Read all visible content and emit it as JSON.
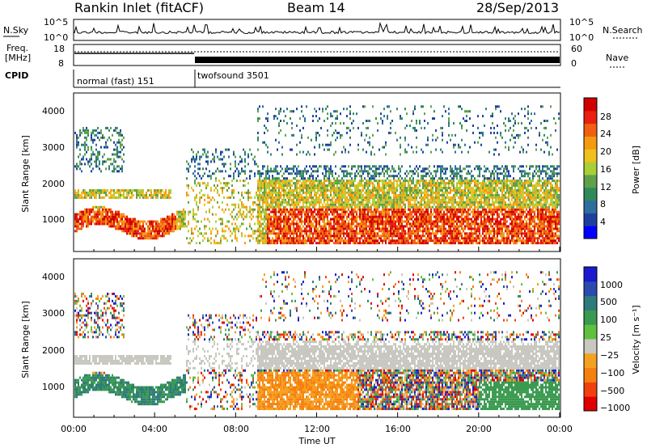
{
  "header": {
    "station": "Rankin Inlet (fitACF)",
    "beam": "Beam 14",
    "date": "28/Sep/2013"
  },
  "panels": {
    "nsky": {
      "label": "N.Sky",
      "ticks": [
        "10^5",
        "10^0"
      ]
    },
    "nsearch": {
      "label": "N.Search",
      "ticks": [
        "10^5",
        "10^0"
      ]
    },
    "freq": {
      "label_line1": "Freq.",
      "label_line2": "[MHz]",
      "ticks": [
        "18",
        "8"
      ]
    },
    "nave": {
      "label": "Nave",
      "ticks": [
        "60",
        "0"
      ]
    },
    "cpid": {
      "label": "CPID",
      "modes": [
        "normal (fast) 151",
        "twofsound 3501"
      ]
    }
  },
  "colors": {
    "power": [
      "#0000ff",
      "#1f3fa0",
      "#2e6e9e",
      "#2f8a5a",
      "#5fa04a",
      "#a8cf3a",
      "#f0c020",
      "#f39a10",
      "#f06010",
      "#e82010",
      "#d00000"
    ],
    "velocity": [
      "#e00000",
      "#f04010",
      "#f58010",
      "#f5a020",
      "#c8c8c0",
      "#60c040",
      "#3a9a50",
      "#2f7a7a",
      "#2a4ab0",
      "#1a1ad0"
    ]
  },
  "chart_data": [
    {
      "type": "heatmap",
      "name": "power",
      "ylabel": "Slant Range [km]",
      "xlabel": "",
      "xlim": [
        "00:00",
        "24:00"
      ],
      "ylim": [
        200,
        4500
      ],
      "yticks": [
        "1000",
        "2000",
        "3000",
        "4000"
      ],
      "colorbar_label": "Power [dB]",
      "colorbar_ticks": [
        "4",
        "8",
        "12",
        "16",
        "20",
        "24",
        "28"
      ],
      "crange": [
        0,
        32
      ]
    },
    {
      "type": "heatmap",
      "name": "velocity",
      "ylabel": "Slant Range [km]",
      "xlabel": "Time UT",
      "xticks": [
        "00:00",
        "04:00",
        "08:00",
        "12:00",
        "16:00",
        "20:00",
        "00:00"
      ],
      "xlim": [
        "00:00",
        "24:00"
      ],
      "ylim": [
        200,
        4500
      ],
      "yticks": [
        "1000",
        "2000",
        "3000",
        "4000"
      ],
      "colorbar_label": "Velocity [m s⁻¹]",
      "colorbar_ticks": [
        "1000",
        "500",
        "100",
        "25",
        "−25",
        "−100",
        "−500",
        "−1000"
      ]
    }
  ]
}
